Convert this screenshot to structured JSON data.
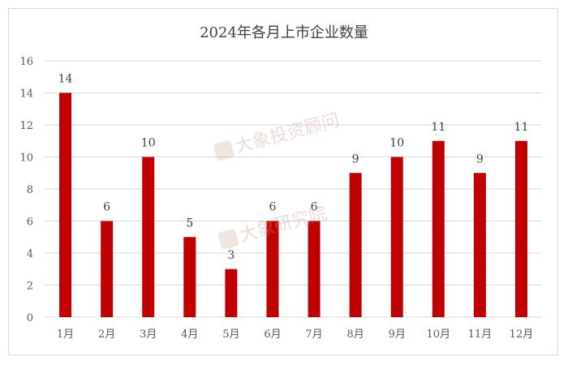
{
  "chart_data": {
    "type": "bar",
    "title": "2024年各月上市企业数量",
    "categories": [
      "1月",
      "2月",
      "3月",
      "4月",
      "5月",
      "6月",
      "7月",
      "8月",
      "9月",
      "10月",
      "11月",
      "12月"
    ],
    "values": [
      14,
      6,
      10,
      5,
      3,
      6,
      6,
      9,
      10,
      11,
      9,
      11
    ],
    "ylim": [
      0,
      16
    ],
    "yticks": [
      0,
      2,
      4,
      6,
      8,
      10,
      12,
      14,
      16
    ],
    "grid": true,
    "bar_color": "#c00000",
    "data_labels": true
  },
  "watermarks": [
    "大象投资顾问",
    "大象研究院"
  ]
}
